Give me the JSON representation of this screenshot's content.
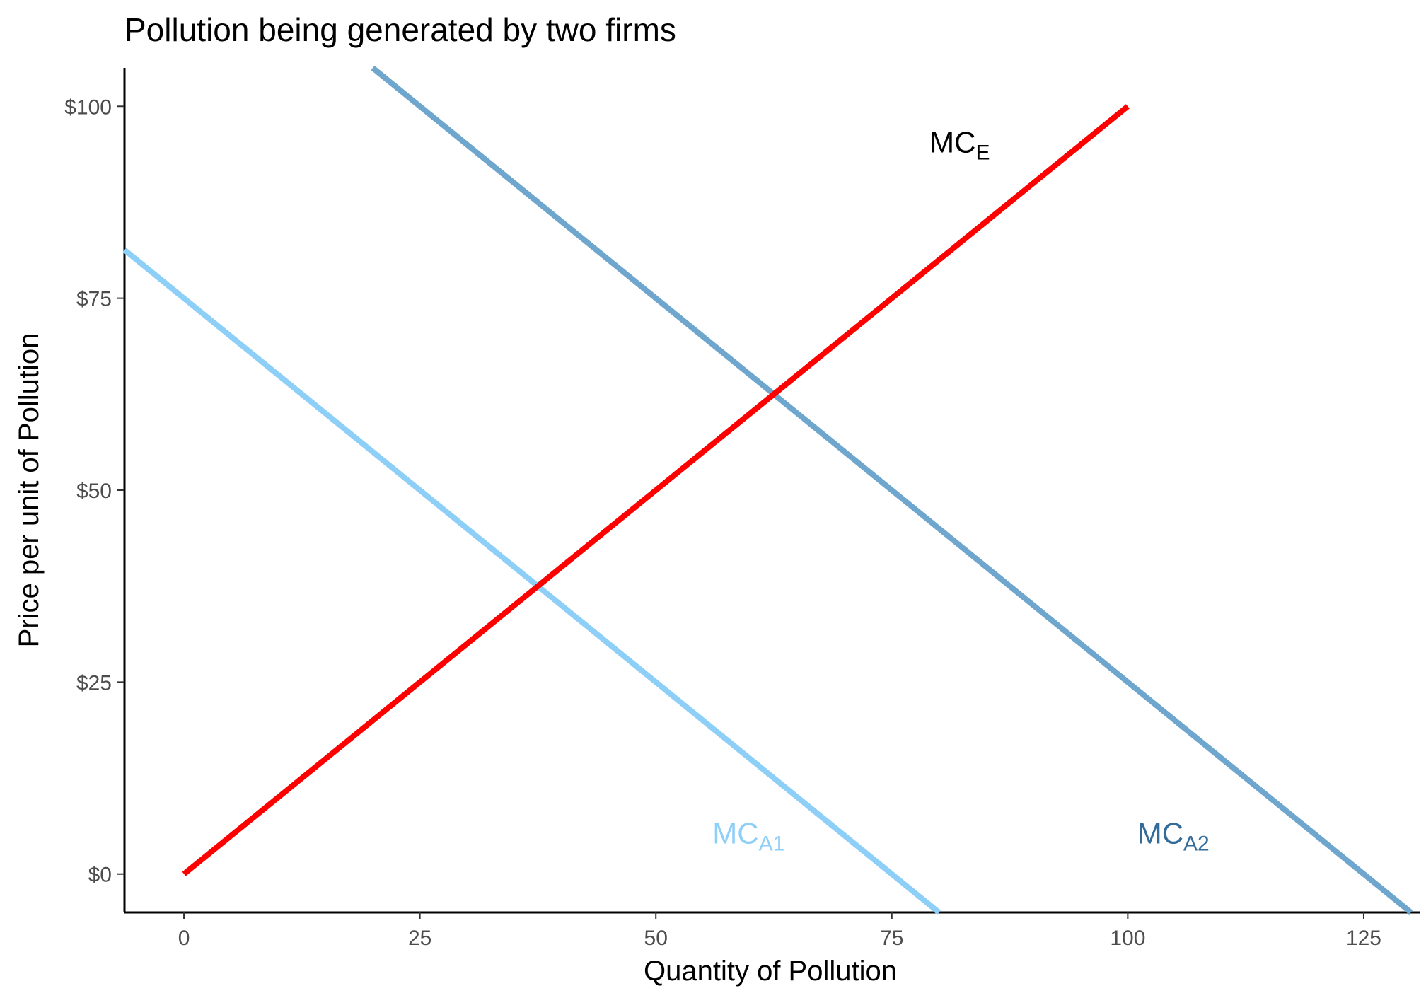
{
  "chart_data": {
    "type": "line",
    "title": "Pollution being generated by two firms",
    "xlabel": "Quantity of Pollution",
    "ylabel": "Price per unit of Pollution",
    "xlim": [
      -6.3,
      131
    ],
    "ylim": [
      -5,
      105
    ],
    "x_ticks": [
      0,
      25,
      50,
      75,
      100,
      125
    ],
    "x_tick_labels": [
      "0",
      "25",
      "50",
      "75",
      "100",
      "125"
    ],
    "y_ticks": [
      0,
      25,
      50,
      75,
      100
    ],
    "y_tick_labels": [
      "$0",
      "$25",
      "$50",
      "$75",
      "$100"
    ],
    "grid": false,
    "legend": "none",
    "series": [
      {
        "key": "mca1",
        "label_main": "MC",
        "label_sub": "A1",
        "color": "#8ecff8",
        "points": [
          [
            -6.3,
            81.3
          ],
          [
            80,
            -5
          ]
        ],
        "label_at": [
          56,
          4
        ]
      },
      {
        "key": "mca2",
        "label_main": "MC",
        "label_sub": "A2",
        "color": "#6fa6cd",
        "label_color": "#336b99",
        "points": [
          [
            20,
            105
          ],
          [
            130,
            -5
          ]
        ],
        "label_at": [
          101,
          4
        ]
      },
      {
        "key": "mce",
        "label_main": "MC",
        "label_sub": "E",
        "color": "#ff0000",
        "label_color": "#000000",
        "points": [
          [
            0,
            0
          ],
          [
            100,
            100
          ]
        ],
        "label_at": [
          79,
          94
        ]
      }
    ]
  }
}
